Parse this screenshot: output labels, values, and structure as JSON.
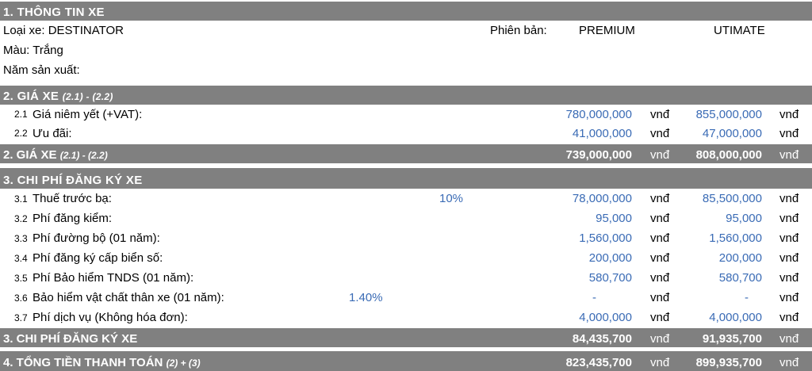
{
  "sec1": {
    "header": "1. THÔNG TIN XE",
    "loai_xe": "Loại xe: DESTINATOR",
    "phien_ban_label": "Phiên bản:",
    "col1": "PREMIUM",
    "col2": "UTIMATE",
    "mau": "Màu: Trắng",
    "nam": "Năm sản xuất:"
  },
  "sec2": {
    "header": "2. GIÁ XE",
    "header_sub": "(2.1) - (2.2)",
    "rows": [
      {
        "num": "2.1",
        "label": "Giá niêm yết (+VAT):",
        "v1": "780,000,000",
        "u1": "vnđ",
        "v2": "855,000,000",
        "u2": "vnđ"
      },
      {
        "num": "2.2",
        "label": "Ưu đãi:",
        "v1": "41,000,000",
        "u1": "vnđ",
        "v2": "47,000,000",
        "u2": "vnđ"
      }
    ],
    "total": {
      "label": "2. GIÁ XE",
      "sub": "(2.1) - (2.2)",
      "v1": "739,000,000",
      "u1": "vnđ",
      "v2": "808,000,000",
      "u2": "vnđ"
    }
  },
  "sec3": {
    "header": "3. CHI PHÍ ĐĂNG KÝ XE",
    "rows": [
      {
        "num": "3.1",
        "label": "Thuế trước bạ:",
        "rate": "10%",
        "v1": "78,000,000",
        "u1": "vnđ",
        "v2": "85,500,000",
        "u2": "vnđ"
      },
      {
        "num": "3.2",
        "label": "Phí đăng kiểm:",
        "rate": "",
        "v1": "95,000",
        "u1": "vnđ",
        "v2": "95,000",
        "u2": "vnđ"
      },
      {
        "num": "3.3",
        "label": "Phí đường bộ (01 năm):",
        "rate": "",
        "v1": "1,560,000",
        "u1": "vnđ",
        "v2": "1,560,000",
        "u2": "vnđ"
      },
      {
        "num": "3.4",
        "label": "Phí đăng ký cấp biển số:",
        "rate": "",
        "v1": "200,000",
        "u1": "vnđ",
        "v2": "200,000",
        "u2": "vnđ"
      },
      {
        "num": "3.5",
        "label": "Phí Bảo hiểm TNDS (01 năm):",
        "rate": "",
        "v1": "580,700",
        "u1": "vnđ",
        "v2": "580,700",
        "u2": "vnđ"
      },
      {
        "num": "3.6",
        "label": "Bảo hiểm vật chất thân xe (01 năm):",
        "rate": "1.40%",
        "v1": "-",
        "u1": "vnđ",
        "v2": "-",
        "u2": "vnđ"
      },
      {
        "num": "3.7",
        "label": "Phí dịch vụ (Không hóa đơn):",
        "rate": "",
        "v1": "4,000,000",
        "u1": "vnđ",
        "v2": "4,000,000",
        "u2": "vnđ"
      }
    ],
    "total": {
      "label": "3. CHI PHÍ ĐĂNG KÝ XE",
      "v1": "84,435,700",
      "u1": "vnđ",
      "v2": "91,935,700",
      "u2": "vnđ"
    }
  },
  "sec4": {
    "label": "4. TỔNG TIỀN THANH TOÁN",
    "sub": "(2) + (3)",
    "v1": "823,435,700",
    "u1": "vnđ",
    "v2": "899,935,700",
    "u2": "vnđ"
  }
}
